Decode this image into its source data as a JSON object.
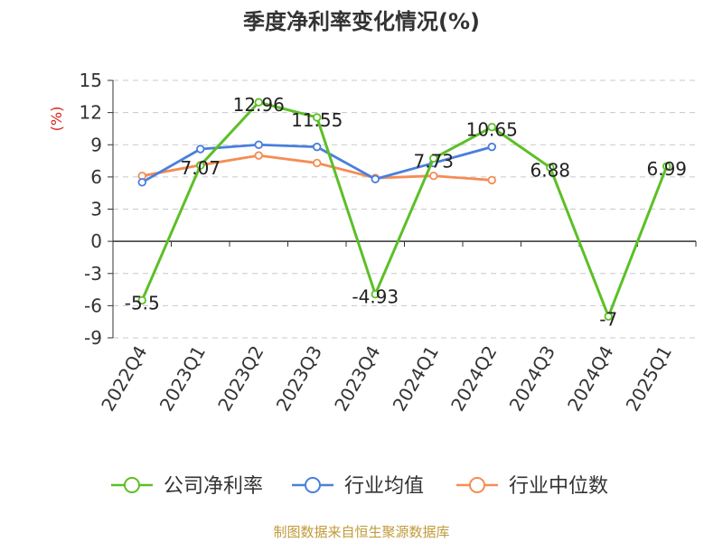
{
  "chart_data": {
    "type": "line",
    "title": "季度净利率变化情况(%)",
    "ylabel": "(%)",
    "ylim": [
      -9,
      15
    ],
    "yticks": [
      -9,
      -6,
      -3,
      0,
      3,
      6,
      9,
      12,
      15
    ],
    "grid": true,
    "legend_position": "bottom",
    "categories": [
      "2022Q4",
      "2023Q1",
      "2023Q2",
      "2023Q3",
      "2023Q4",
      "2024Q1",
      "2024Q2",
      "2024Q3",
      "2024Q4",
      "2025Q1"
    ],
    "series": [
      {
        "name": "公司净利率",
        "color": "#5cbf26",
        "values": [
          -5.5,
          7.07,
          12.96,
          11.55,
          -4.93,
          7.73,
          10.65,
          6.88,
          -7,
          6.99
        ],
        "labels": [
          "-5.5",
          "7.07",
          "12.96",
          "11.55",
          "-4.93",
          "7.73",
          "10.65",
          "6.88",
          "-7",
          "6.99"
        ]
      },
      {
        "name": "行业均值",
        "color": "#4a7fdc",
        "values": [
          5.5,
          8.6,
          9.0,
          8.8,
          5.8,
          7.3,
          8.8,
          null,
          null,
          null
        ]
      },
      {
        "name": "行业中位数",
        "color": "#f58c55",
        "values": [
          6.1,
          7.1,
          8.0,
          7.3,
          5.9,
          6.1,
          5.7,
          null,
          null,
          null
        ]
      }
    ]
  },
  "source_text": "制图数据来自恒生聚源数据库",
  "colors": {
    "axis": "#333333",
    "grid": "#c8c8c8",
    "ylabel": "#d9221c",
    "source": "#c09a3a"
  }
}
